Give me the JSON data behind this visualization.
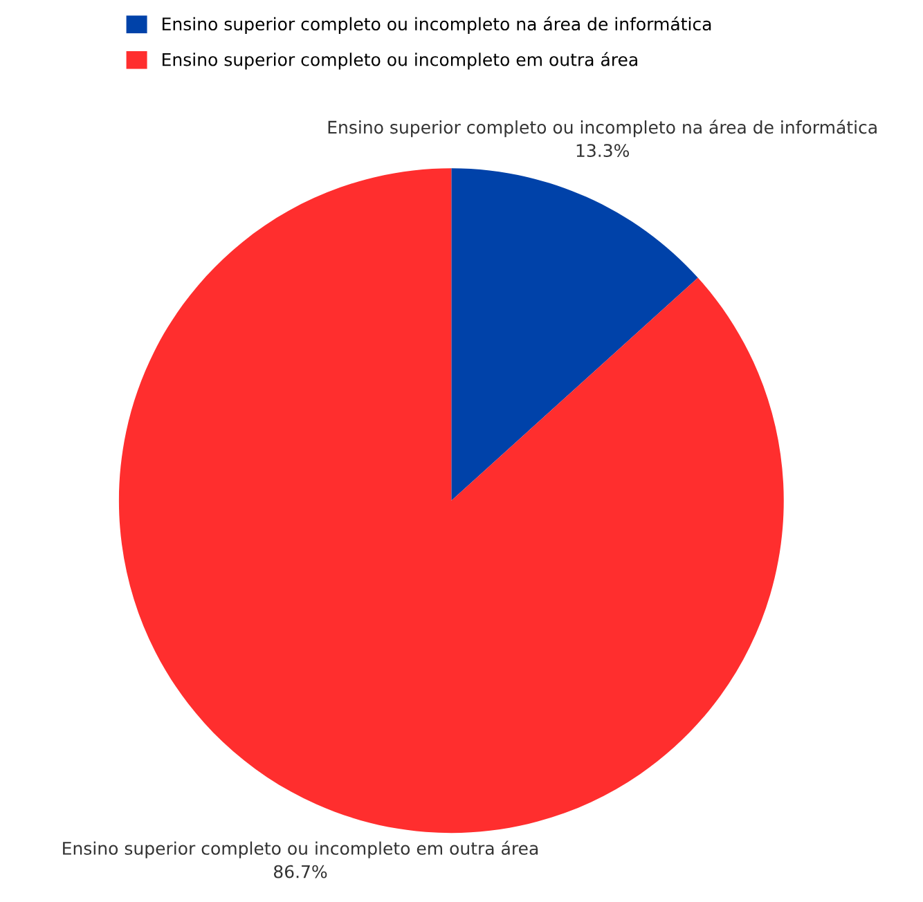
{
  "chart_data": {
    "type": "pie",
    "categories": [
      "Ensino superior completo ou incompleto na área de informática",
      "Ensino superior completo ou incompleto em outra área"
    ],
    "values": [
      13.3,
      86.7
    ],
    "colors": [
      "#0042a9",
      "#ff2e2e"
    ],
    "value_labels": [
      "13.3%",
      "86.7%"
    ],
    "legend": "top left"
  }
}
